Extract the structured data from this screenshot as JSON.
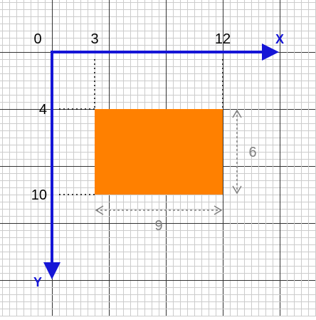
{
  "origin_label": "0",
  "x_axis": {
    "label": "X",
    "ticks": [
      {
        "value": 3,
        "label": "3"
      },
      {
        "value": 12,
        "label": "12"
      }
    ]
  },
  "y_axis": {
    "label": "Y",
    "ticks": [
      {
        "value": 4,
        "label": "4"
      },
      {
        "value": 10,
        "label": "10"
      }
    ]
  },
  "rectangle": {
    "x": 3,
    "y": 4,
    "width": 9,
    "height": 6,
    "fill": "#ff8000",
    "width_label": "9",
    "height_label": "6"
  },
  "colors": {
    "axis": "#1515d6",
    "grid_minor": "#cccccc",
    "grid_major": "#333333",
    "dimension": "#808080",
    "tick_guide": "#000000"
  }
}
